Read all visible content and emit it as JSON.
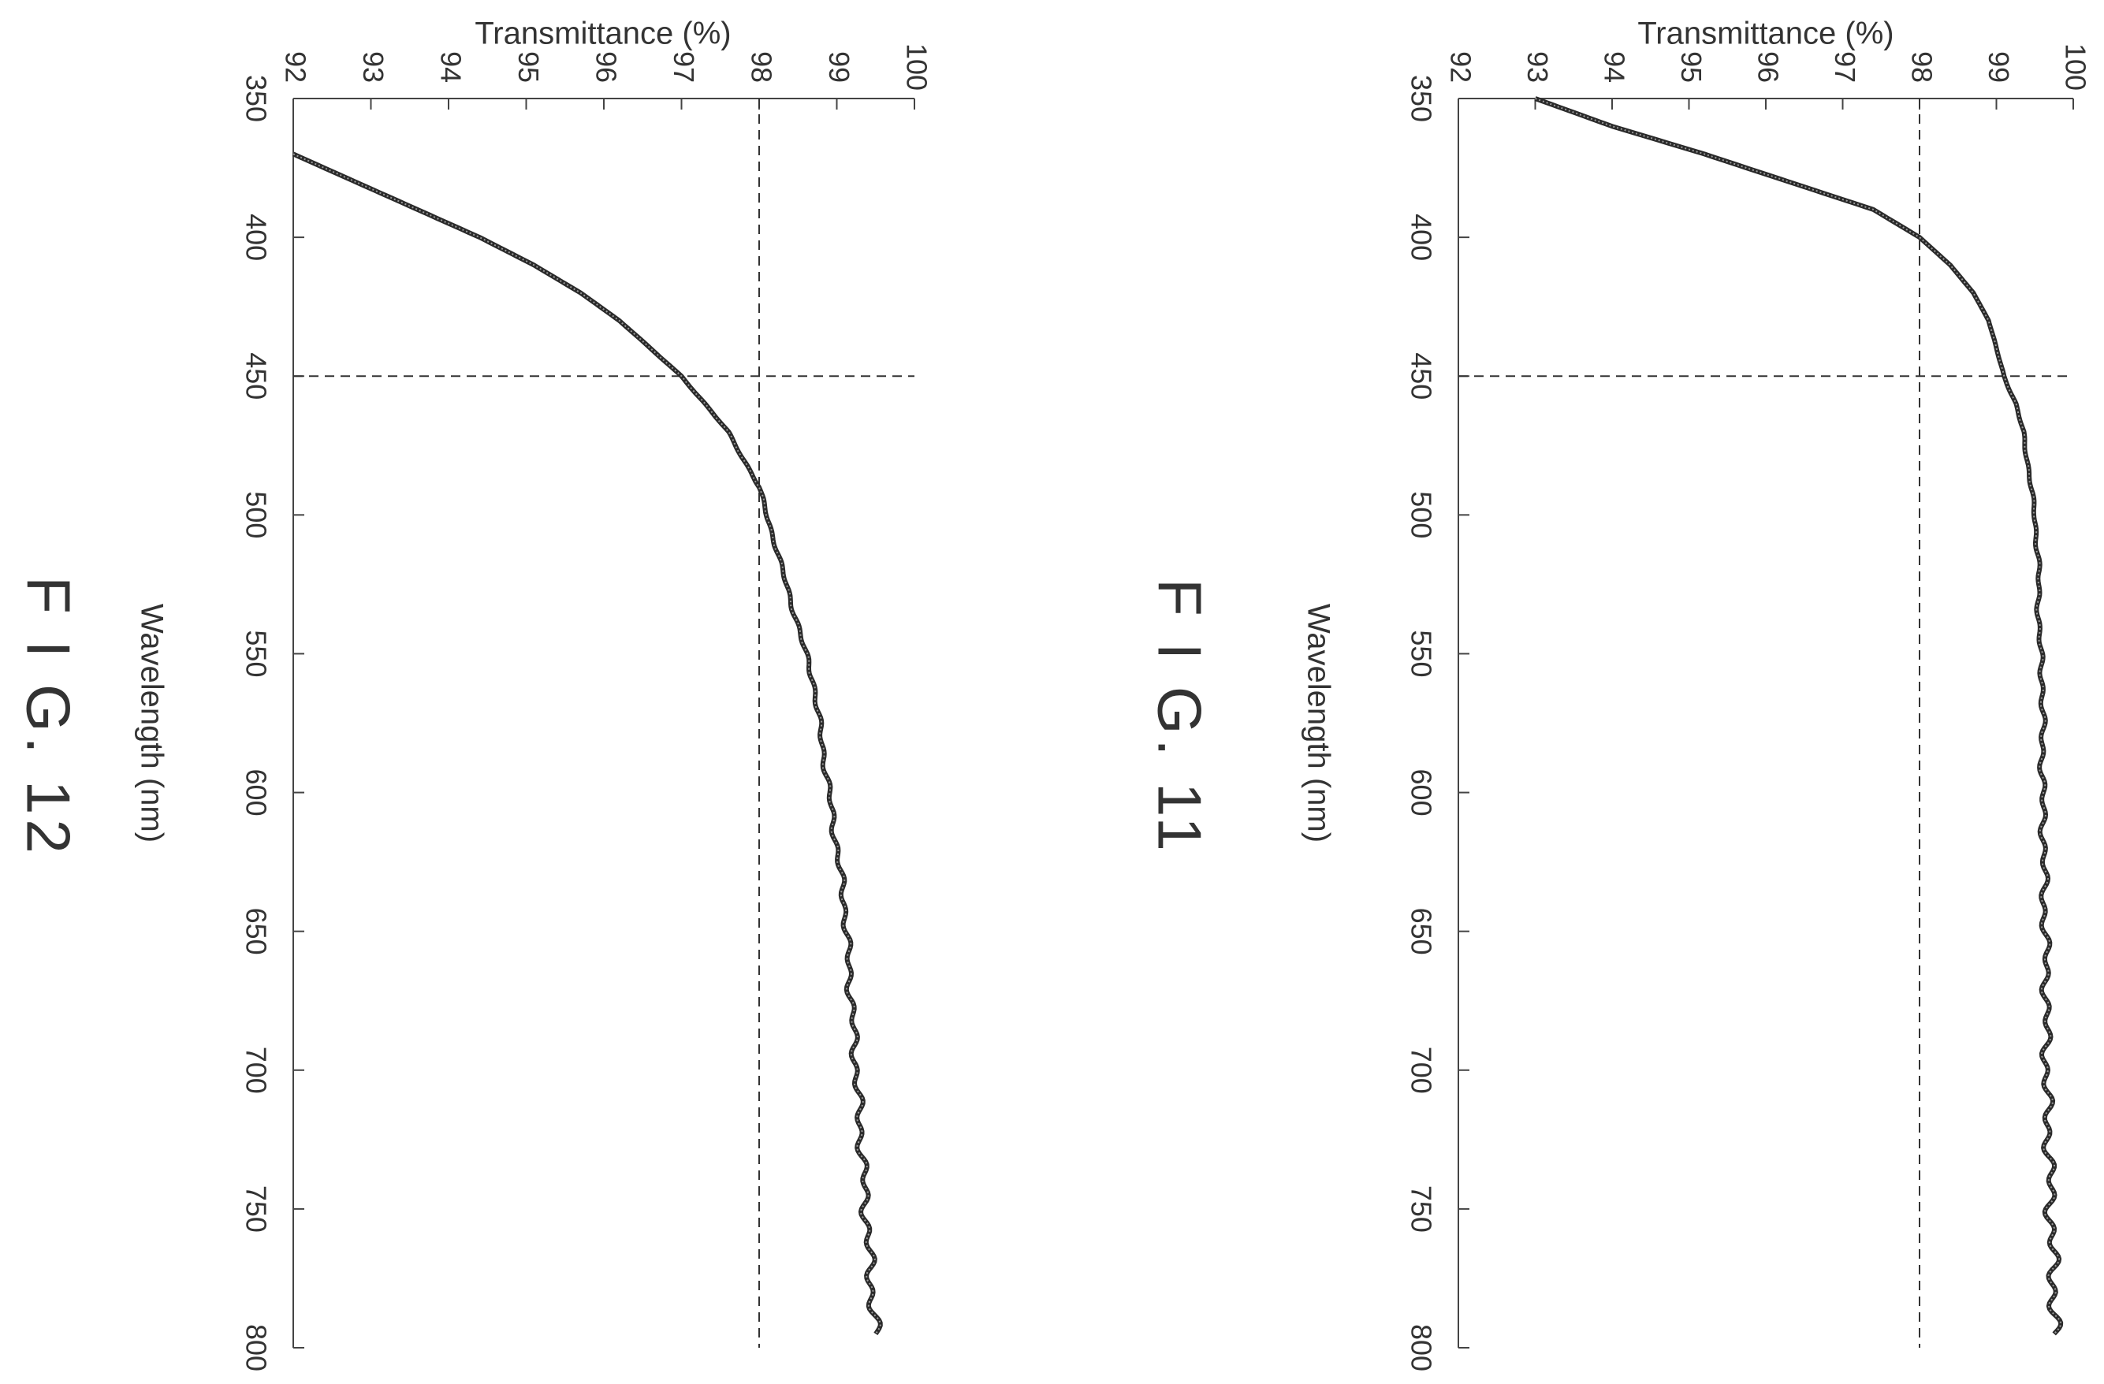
{
  "chart_data": [
    {
      "type": "line",
      "figure_label": "F I G. 11",
      "xlabel": "Wavelength (nm)",
      "ylabel": "Transmittance (%)",
      "xlim": [
        350,
        800
      ],
      "ylim": [
        92,
        100
      ],
      "xticks": [
        350,
        400,
        450,
        500,
        550,
        600,
        650,
        700,
        750,
        800
      ],
      "yticks": [
        92,
        93,
        94,
        95,
        96,
        97,
        98,
        99,
        100
      ],
      "reference_lines": {
        "x": 450,
        "y": 98
      },
      "orientation": "rotated-90-clockwise",
      "series": [
        {
          "x": [
            350,
            360,
            370,
            380,
            390,
            400,
            410,
            420,
            430,
            440,
            450,
            460,
            470,
            480,
            490,
            500,
            520,
            540,
            560,
            580,
            600,
            620,
            640,
            660,
            680,
            700,
            720,
            740,
            760,
            780,
            795
          ],
          "y": [
            93.0,
            94.0,
            95.2,
            96.3,
            97.4,
            98.0,
            98.4,
            98.7,
            98.9,
            99.0,
            99.1,
            99.25,
            99.35,
            99.4,
            99.45,
            99.5,
            99.55,
            99.55,
            99.6,
            99.6,
            99.6,
            99.62,
            99.62,
            99.65,
            99.65,
            99.65,
            99.67,
            99.7,
            99.72,
            99.75,
            99.75
          ],
          "wobble": 0.06
        }
      ]
    },
    {
      "type": "line",
      "figure_label": "F I G. 12",
      "xlabel": "Wavelength (nm)",
      "ylabel": "Transmittance (%)",
      "xlim": [
        350,
        800
      ],
      "ylim": [
        92,
        100
      ],
      "xticks": [
        350,
        400,
        450,
        500,
        550,
        600,
        650,
        700,
        750,
        800
      ],
      "yticks": [
        92,
        93,
        94,
        95,
        96,
        97,
        98,
        99,
        100
      ],
      "reference_lines": {
        "x": 450,
        "y": 98
      },
      "orientation": "rotated-90-clockwise",
      "series": [
        {
          "x": [
            370,
            380,
            390,
            400,
            410,
            420,
            430,
            440,
            450,
            460,
            470,
            480,
            490,
            500,
            510,
            520,
            540,
            560,
            580,
            600,
            620,
            640,
            660,
            680,
            700,
            720,
            740,
            760,
            780,
            795
          ],
          "y": [
            92.0,
            92.8,
            93.6,
            94.4,
            95.1,
            95.7,
            96.2,
            96.6,
            97.0,
            97.3,
            97.6,
            97.8,
            98.0,
            98.1,
            98.2,
            98.3,
            98.5,
            98.7,
            98.8,
            98.9,
            99.0,
            99.1,
            99.15,
            99.2,
            99.25,
            99.3,
            99.35,
            99.4,
            99.45,
            99.5
          ],
          "wobble": 0.05
        }
      ]
    }
  ]
}
